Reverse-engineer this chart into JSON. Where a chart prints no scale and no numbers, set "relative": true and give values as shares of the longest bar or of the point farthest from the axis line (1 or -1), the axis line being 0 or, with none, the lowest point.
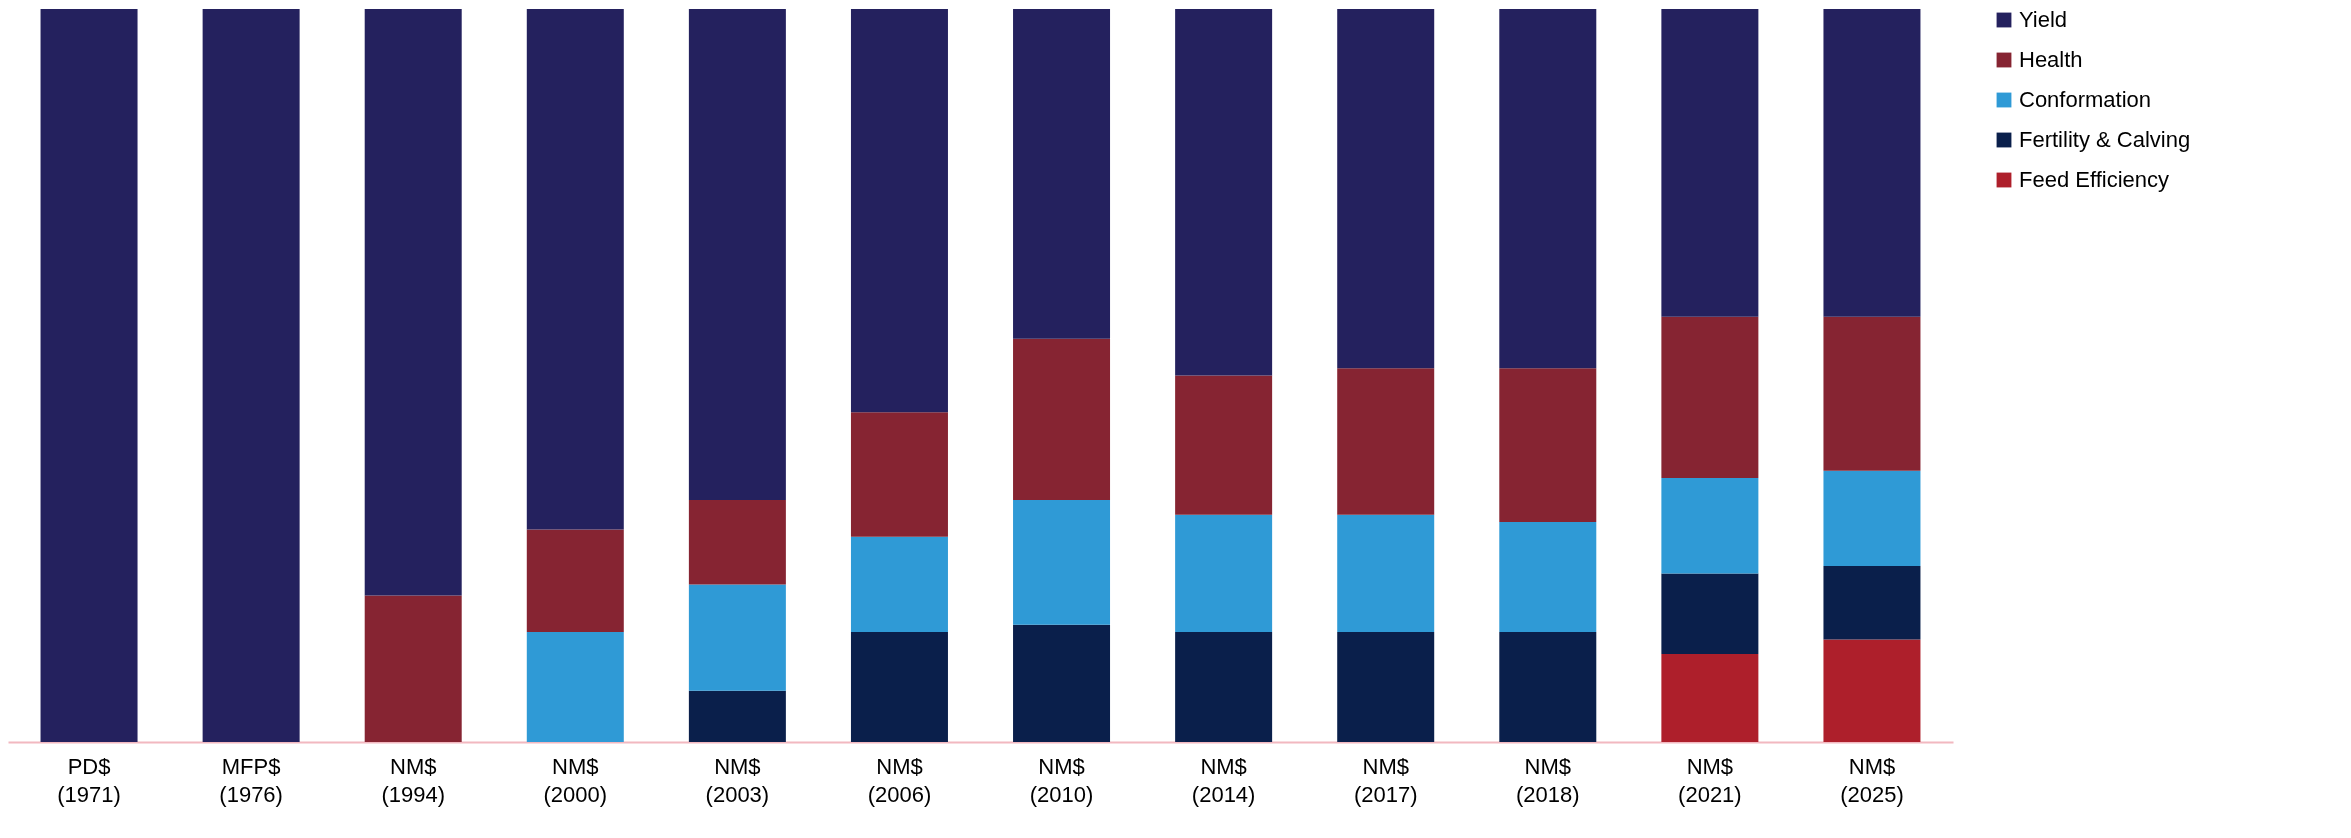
{
  "chart_data": {
    "type": "bar",
    "stacked": true,
    "relative": true,
    "legend": "right",
    "categories": [
      "PD$ (1971)",
      "MFP$ (1976)",
      "NM$ (1994)",
      "NM$ (2000)",
      "NM$ (2003)",
      "NM$ (2006)",
      "NM$ (2010)",
      "NM$ (2014)",
      "NM$ (2017)",
      "NM$ (2018)",
      "NM$ (2021)",
      "NM$ (2025)"
    ],
    "series": [
      {
        "name": "Feed Efficiency",
        "color": "#ae1f2b",
        "values": [
          null,
          null,
          null,
          null,
          null,
          null,
          null,
          null,
          null,
          null,
          0.12,
          0.14
        ]
      },
      {
        "name": "Fertility & Calving",
        "color": "#0a1f4b",
        "values": [
          null,
          null,
          null,
          null,
          0.07,
          0.15,
          0.16,
          0.15,
          0.15,
          0.15,
          0.11,
          0.1
        ]
      },
      {
        "name": "Conformation",
        "color": "#2f9ad6",
        "values": [
          null,
          null,
          null,
          0.15,
          0.145,
          0.13,
          0.17,
          0.16,
          0.16,
          0.15,
          0.13,
          0.13
        ]
      },
      {
        "name": "Health",
        "color": "#862432",
        "values": [
          null,
          null,
          0.2,
          0.14,
          0.115,
          0.17,
          0.22,
          0.19,
          0.2,
          0.21,
          0.22,
          0.21
        ]
      },
      {
        "name": "Yield",
        "color": "#24215e",
        "values": [
          1,
          1,
          0.8,
          0.71,
          0.67,
          0.55,
          0.45,
          0.5,
          0.49,
          0.49,
          0.42,
          0.42
        ]
      }
    ]
  }
}
